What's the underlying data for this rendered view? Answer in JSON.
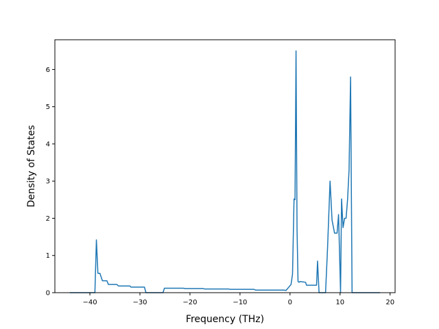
{
  "chart_data": {
    "type": "line",
    "title": "",
    "xlabel": "Frequency (THz)",
    "ylabel": "Density of States",
    "xlim": [
      -47,
      21
    ],
    "ylim": [
      0,
      6.8
    ],
    "grid": false,
    "line_color": "#1f77b4",
    "x_ticks": [
      -40,
      -30,
      -20,
      -10,
      0,
      10,
      20
    ],
    "x_tick_labels": [
      "−40",
      "−30",
      "−20",
      "−10",
      "0",
      "10",
      "20"
    ],
    "y_ticks": [
      0,
      1,
      2,
      3,
      4,
      5,
      6
    ],
    "y_tick_labels": [
      "0",
      "1",
      "2",
      "3",
      "4",
      "5",
      "6"
    ],
    "series": [
      {
        "x": [
          -44,
          -39,
          -38.7,
          -38.4,
          -38.0,
          -37.5,
          -36.6,
          -36.3,
          -34.6,
          -34.3,
          -32.0,
          -31.8,
          -29.1,
          -28.8,
          -25.4,
          -25.1,
          -21.3,
          -21.0,
          -17.4,
          -17.1,
          -12.3,
          -12.0,
          -7.2,
          -6.9,
          -1.2,
          -0.8,
          0.2,
          0.5,
          0.8,
          1.0,
          1.2,
          1.4,
          1.6,
          1.8,
          2.0,
          3.1,
          3.3,
          5.3,
          5.5,
          5.8,
          6.1,
          7.1,
          7.5,
          8.0,
          8.4,
          8.9,
          9.4,
          9.7,
          10.1,
          10.3,
          10.6,
          10.9,
          11.2,
          11.5,
          11.8,
          12.1,
          12.4,
          12.7,
          13.0,
          13.2,
          14.5,
          18.0
        ],
        "y": [
          0,
          0,
          1.42,
          0.52,
          0.52,
          0.32,
          0.32,
          0.22,
          0.22,
          0.18,
          0.18,
          0.15,
          0.15,
          0,
          0,
          0.12,
          0.12,
          0.11,
          0.11,
          0.1,
          0.1,
          0.09,
          0.09,
          0.07,
          0.07,
          0.06,
          0.22,
          0.5,
          2.52,
          2.5,
          6.5,
          1.7,
          0.3,
          0.28,
          0.3,
          0.28,
          0.2,
          0.2,
          0.85,
          0,
          0,
          0,
          1.2,
          3.0,
          1.95,
          1.6,
          1.6,
          2.1,
          0,
          2.52,
          1.75,
          2.0,
          2.0,
          2.5,
          3.3,
          5.8,
          0,
          0,
          0,
          0,
          0,
          0
        ]
      }
    ]
  }
}
